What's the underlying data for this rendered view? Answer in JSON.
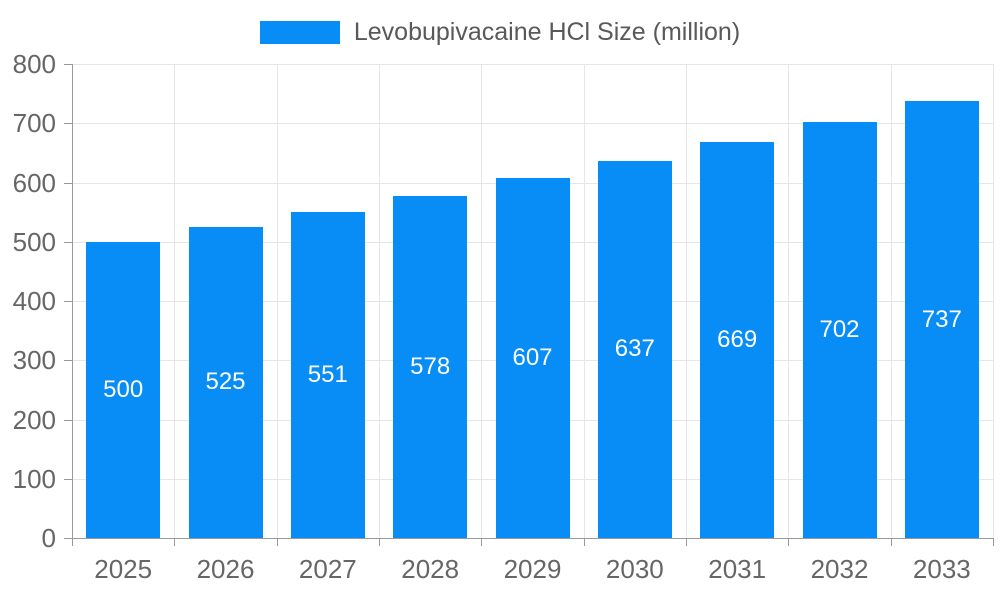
{
  "legend": {
    "label": "Levobupivacaine HCl Size (million)"
  },
  "colors": {
    "bar": "#088CF6",
    "grid": "#e6e6e6",
    "axis": "#999999",
    "tick_text": "#666666",
    "legend_text": "#595959",
    "value_text": "#ffffff"
  },
  "chart_data": {
    "type": "bar",
    "title": "",
    "xlabel": "",
    "ylabel": "",
    "categories": [
      "2025",
      "2026",
      "2027",
      "2028",
      "2029",
      "2030",
      "2031",
      "2032",
      "2033"
    ],
    "values": [
      500,
      525,
      551,
      578,
      607,
      637,
      669,
      702,
      737
    ],
    "series_name": "Levobupivacaine HCl Size (million)",
    "ylim": [
      0,
      800
    ],
    "yticks": [
      0,
      100,
      200,
      300,
      400,
      500,
      600,
      700,
      800
    ],
    "grid": true,
    "legend_position": "top-center",
    "value_labels": "inside-center"
  }
}
